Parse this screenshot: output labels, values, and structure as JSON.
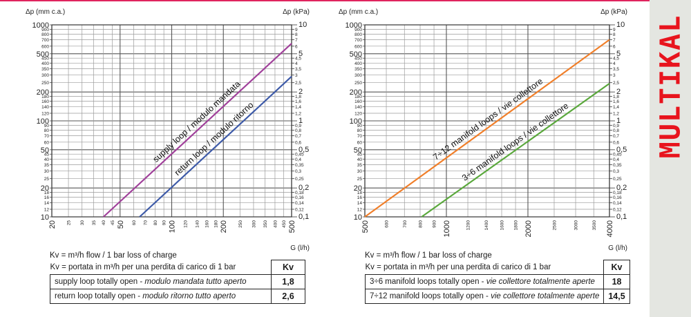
{
  "brand": "MULTIKAL",
  "chart_data": [
    {
      "type": "line",
      "xlabel": "G (l/h)",
      "ylabel_left": "Δp (mm c.a.)",
      "ylabel_right": "Δp (kPa)",
      "xscale": "log",
      "yscale": "log",
      "xlim": [
        20,
        500
      ],
      "ylim": [
        10,
        1000
      ],
      "grid": true,
      "x_ticks": [
        {
          "v": 20,
          "label": "20",
          "major": true
        },
        {
          "v": 25,
          "label": "25"
        },
        {
          "v": 30,
          "label": "30"
        },
        {
          "v": 35,
          "label": "35"
        },
        {
          "v": 40,
          "label": "40"
        },
        {
          "v": 45,
          "label": "45"
        },
        {
          "v": 50,
          "label": "50",
          "major": true
        },
        {
          "v": 60,
          "label": "60"
        },
        {
          "v": 70,
          "label": "70"
        },
        {
          "v": 80,
          "label": "80"
        },
        {
          "v": 90,
          "label": "90"
        },
        {
          "v": 100,
          "label": "100",
          "major": true
        },
        {
          "v": 120,
          "label": "120"
        },
        {
          "v": 140,
          "label": "140"
        },
        {
          "v": 160,
          "label": "160"
        },
        {
          "v": 180,
          "label": "180"
        },
        {
          "v": 200,
          "label": "200",
          "major": true
        },
        {
          "v": 250,
          "label": "250"
        },
        {
          "v": 300,
          "label": "300"
        },
        {
          "v": 350,
          "label": "350"
        },
        {
          "v": 400,
          "label": "400"
        },
        {
          "v": 450,
          "label": "450"
        },
        {
          "v": 500,
          "label": "500",
          "major": true
        }
      ],
      "y_ticks_left": [
        {
          "v": 10,
          "label": "10",
          "major": true
        },
        {
          "v": 12,
          "label": "12"
        },
        {
          "v": 14,
          "label": "14"
        },
        {
          "v": 16,
          "label": "16"
        },
        {
          "v": 18,
          "label": "18"
        },
        {
          "v": 20,
          "label": "20",
          "major": true
        },
        {
          "v": 25,
          "label": "25"
        },
        {
          "v": 30,
          "label": "30"
        },
        {
          "v": 35,
          "label": "35"
        },
        {
          "v": 40,
          "label": "40"
        },
        {
          "v": 45,
          "label": "45"
        },
        {
          "v": 50,
          "label": "50",
          "major": true
        },
        {
          "v": 60,
          "label": "60"
        },
        {
          "v": 70,
          "label": "70"
        },
        {
          "v": 80,
          "label": "80"
        },
        {
          "v": 90,
          "label": "90"
        },
        {
          "v": 100,
          "label": "100",
          "major": true
        },
        {
          "v": 120,
          "label": "120"
        },
        {
          "v": 140,
          "label": "140"
        },
        {
          "v": 160,
          "label": "160"
        },
        {
          "v": 180,
          "label": "180"
        },
        {
          "v": 200,
          "label": "200",
          "major": true
        },
        {
          "v": 250,
          "label": "250"
        },
        {
          "v": 300,
          "label": "300"
        },
        {
          "v": 350,
          "label": "350"
        },
        {
          "v": 400,
          "label": "400"
        },
        {
          "v": 450,
          "label": "450"
        },
        {
          "v": 500,
          "label": "500",
          "major": true
        },
        {
          "v": 600,
          "label": "600"
        },
        {
          "v": 700,
          "label": "700"
        },
        {
          "v": 800,
          "label": "800"
        },
        {
          "v": 900,
          "label": "900"
        },
        {
          "v": 1000,
          "label": "1000",
          "major": true
        }
      ],
      "y_ticks_right": [
        {
          "v": 10,
          "label": "0,1",
          "major": true
        },
        {
          "v": 12,
          "label": "0,12"
        },
        {
          "v": 14,
          "label": "0,14"
        },
        {
          "v": 16,
          "label": "0,16"
        },
        {
          "v": 18,
          "label": "0,18"
        },
        {
          "v": 20,
          "label": "0,2",
          "major": true
        },
        {
          "v": 25,
          "label": "0,25"
        },
        {
          "v": 30,
          "label": "0,3"
        },
        {
          "v": 35,
          "label": "0,35"
        },
        {
          "v": 40,
          "label": "0,4"
        },
        {
          "v": 45,
          "label": "0,45"
        },
        {
          "v": 50,
          "label": "0,5",
          "major": true
        },
        {
          "v": 60,
          "label": "0,6"
        },
        {
          "v": 70,
          "label": "0,7"
        },
        {
          "v": 80,
          "label": "0,8"
        },
        {
          "v": 90,
          "label": "0,9"
        },
        {
          "v": 100,
          "label": "1",
          "major": true
        },
        {
          "v": 120,
          "label": "1,2"
        },
        {
          "v": 140,
          "label": "1,4"
        },
        {
          "v": 160,
          "label": "1,6"
        },
        {
          "v": 180,
          "label": "1,8"
        },
        {
          "v": 200,
          "label": "2",
          "major": true
        },
        {
          "v": 250,
          "label": "2,5"
        },
        {
          "v": 300,
          "label": "3"
        },
        {
          "v": 350,
          "label": "3,5"
        },
        {
          "v": 400,
          "label": "4"
        },
        {
          "v": 450,
          "label": "4,5"
        },
        {
          "v": 500,
          "label": "5",
          "major": true
        },
        {
          "v": 600,
          "label": "6"
        },
        {
          "v": 700,
          "label": "7"
        },
        {
          "v": 800,
          "label": "8"
        },
        {
          "v": 900,
          "label": "9"
        },
        {
          "v": 1000,
          "label": "10",
          "major": true
        }
      ],
      "series": [
        {
          "name": "supply loop / modulo mandata",
          "color": "#a0409a",
          "x": [
            40,
            500
          ],
          "y": [
            10,
            640
          ]
        },
        {
          "name": "return loop / modulo ritorno",
          "color": "#3d5aa8",
          "x": [
            65,
            500
          ],
          "y": [
            10,
            290
          ]
        }
      ]
    },
    {
      "type": "line",
      "xlabel": "G (l/h)",
      "ylabel_left": "Δp (mm c.a.)",
      "ylabel_right": "Δp (kPa)",
      "xscale": "log",
      "yscale": "log",
      "xlim": [
        500,
        4000
      ],
      "ylim": [
        10,
        1000
      ],
      "grid": true,
      "x_ticks": [
        {
          "v": 500,
          "label": "500",
          "major": true
        },
        {
          "v": 600,
          "label": "600"
        },
        {
          "v": 700,
          "label": "700"
        },
        {
          "v": 800,
          "label": "800"
        },
        {
          "v": 900,
          "label": "900"
        },
        {
          "v": 1000,
          "label": "1000",
          "major": true
        },
        {
          "v": 1200,
          "label": "1200"
        },
        {
          "v": 1400,
          "label": "1400"
        },
        {
          "v": 1600,
          "label": "1600"
        },
        {
          "v": 1800,
          "label": "1800"
        },
        {
          "v": 2000,
          "label": "2000",
          "major": true
        },
        {
          "v": 2500,
          "label": "2500"
        },
        {
          "v": 3000,
          "label": "3000"
        },
        {
          "v": 3500,
          "label": "3500"
        },
        {
          "v": 4000,
          "label": "4000",
          "major": true
        }
      ],
      "y_ticks_left": [
        {
          "v": 10,
          "label": "10",
          "major": true
        },
        {
          "v": 12,
          "label": "12"
        },
        {
          "v": 14,
          "label": "14"
        },
        {
          "v": 16,
          "label": "16"
        },
        {
          "v": 18,
          "label": "18"
        },
        {
          "v": 20,
          "label": "20",
          "major": true
        },
        {
          "v": 25,
          "label": "25"
        },
        {
          "v": 30,
          "label": "30"
        },
        {
          "v": 35,
          "label": "35"
        },
        {
          "v": 40,
          "label": "40"
        },
        {
          "v": 45,
          "label": "45"
        },
        {
          "v": 50,
          "label": "50",
          "major": true
        },
        {
          "v": 60,
          "label": "60"
        },
        {
          "v": 70,
          "label": "70"
        },
        {
          "v": 80,
          "label": "80"
        },
        {
          "v": 90,
          "label": "90"
        },
        {
          "v": 100,
          "label": "100",
          "major": true
        },
        {
          "v": 120,
          "label": "120"
        },
        {
          "v": 140,
          "label": "140"
        },
        {
          "v": 160,
          "label": "160"
        },
        {
          "v": 180,
          "label": "180"
        },
        {
          "v": 200,
          "label": "200",
          "major": true
        },
        {
          "v": 250,
          "label": "250"
        },
        {
          "v": 300,
          "label": "300"
        },
        {
          "v": 350,
          "label": "350"
        },
        {
          "v": 400,
          "label": "400"
        },
        {
          "v": 450,
          "label": "450"
        },
        {
          "v": 500,
          "label": "500",
          "major": true
        },
        {
          "v": 600,
          "label": "600"
        },
        {
          "v": 700,
          "label": "700"
        },
        {
          "v": 800,
          "label": "800"
        },
        {
          "v": 900,
          "label": "900"
        },
        {
          "v": 1000,
          "label": "1000",
          "major": true
        }
      ],
      "y_ticks_right": [
        {
          "v": 10,
          "label": "0,1",
          "major": true
        },
        {
          "v": 12,
          "label": "0,12"
        },
        {
          "v": 14,
          "label": "0,14"
        },
        {
          "v": 16,
          "label": "0,16"
        },
        {
          "v": 18,
          "label": "0,18"
        },
        {
          "v": 20,
          "label": "0,2",
          "major": true
        },
        {
          "v": 25,
          "label": "0,25"
        },
        {
          "v": 30,
          "label": "0,3"
        },
        {
          "v": 35,
          "label": "0,35"
        },
        {
          "v": 40,
          "label": "0,4"
        },
        {
          "v": 45,
          "label": "0,45"
        },
        {
          "v": 50,
          "label": "0,5",
          "major": true
        },
        {
          "v": 60,
          "label": "0,6"
        },
        {
          "v": 70,
          "label": "0,7"
        },
        {
          "v": 80,
          "label": "0,8"
        },
        {
          "v": 90,
          "label": "0,9"
        },
        {
          "v": 100,
          "label": "1",
          "major": true
        },
        {
          "v": 120,
          "label": "1,2"
        },
        {
          "v": 140,
          "label": "1,4"
        },
        {
          "v": 160,
          "label": "1,6"
        },
        {
          "v": 180,
          "label": "1,8"
        },
        {
          "v": 200,
          "label": "2",
          "major": true
        },
        {
          "v": 250,
          "label": "2,5"
        },
        {
          "v": 300,
          "label": "3"
        },
        {
          "v": 350,
          "label": "3,5"
        },
        {
          "v": 400,
          "label": "4"
        },
        {
          "v": 450,
          "label": "4,5"
        },
        {
          "v": 500,
          "label": "5",
          "major": true
        },
        {
          "v": 600,
          "label": "6"
        },
        {
          "v": 700,
          "label": "7"
        },
        {
          "v": 800,
          "label": "8"
        },
        {
          "v": 900,
          "label": "9"
        },
        {
          "v": 1000,
          "label": "10",
          "major": true
        }
      ],
      "series": [
        {
          "name": "7÷12 manifold loops / vie collettore",
          "color": "#f07f2a",
          "x": [
            500,
            4000
          ],
          "y": [
            10,
            700
          ]
        },
        {
          "name": "3÷6 manifold loops / vie collettore",
          "color": "#5aa83c",
          "x": [
            810,
            4000
          ],
          "y": [
            10,
            245
          ]
        }
      ]
    }
  ],
  "kv_tables": [
    {
      "note_en": "Kv = m³/h flow / 1 bar loss of charge",
      "note_it": "Kv = portata in m³/h per una perdita di carico di 1 bar",
      "header": "Kv",
      "rows": [
        {
          "label": "supply loop totally open - ",
          "label_it": "modulo mandata tutto aperto",
          "value": "1,8"
        },
        {
          "label": "return loop totally open - ",
          "label_it": "modulo ritorno tutto aperto",
          "value": "2,6"
        }
      ]
    },
    {
      "note_en": "Kv = m³/h flow / 1 bar loss of charge",
      "note_it": "Kv = portata in m³/h per una perdita di carico di 1 bar",
      "header": "Kv",
      "rows": [
        {
          "label": "3÷6 manifold loops totally open - ",
          "label_it": "vie collettore totalmente aperte",
          "value": "18"
        },
        {
          "label": "7÷12 manifold loops totally open - ",
          "label_it": "vie collettore totalmente aperte",
          "value": "14,5"
        }
      ]
    }
  ]
}
